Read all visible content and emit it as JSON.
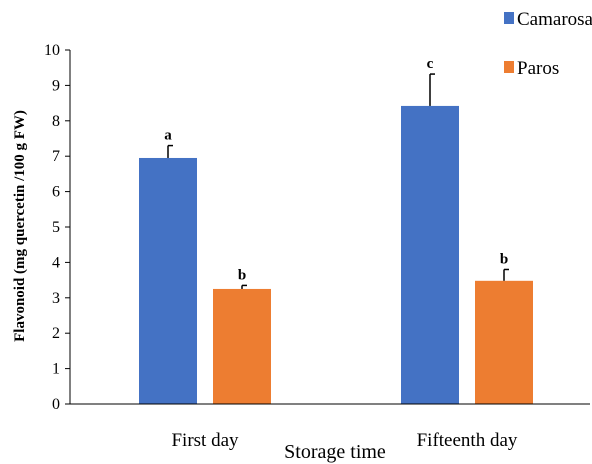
{
  "chart_data": {
    "type": "bar",
    "title": "",
    "xlabel": "Storage time",
    "ylabel": "Flavonoid (mg quercetin /100 g FW)",
    "ylim": [
      0,
      10
    ],
    "yticks": [
      "0",
      "1",
      "2",
      "3",
      "4",
      "5",
      "6",
      "7",
      "8",
      "9",
      "10"
    ],
    "categories": [
      "First day",
      "Fifteenth day"
    ],
    "series": [
      {
        "name": "Camarosa",
        "color": "#4472C4",
        "values": [
          6.95,
          8.42
        ],
        "errors": [
          0.35,
          0.9
        ],
        "labels": [
          "a",
          "c"
        ]
      },
      {
        "name": "Paros",
        "color": "#ED7D31",
        "values": [
          3.25,
          3.48
        ],
        "errors": [
          0.1,
          0.32
        ],
        "labels": [
          "b",
          "b"
        ]
      }
    ],
    "grid": false,
    "legend": "top-right"
  }
}
